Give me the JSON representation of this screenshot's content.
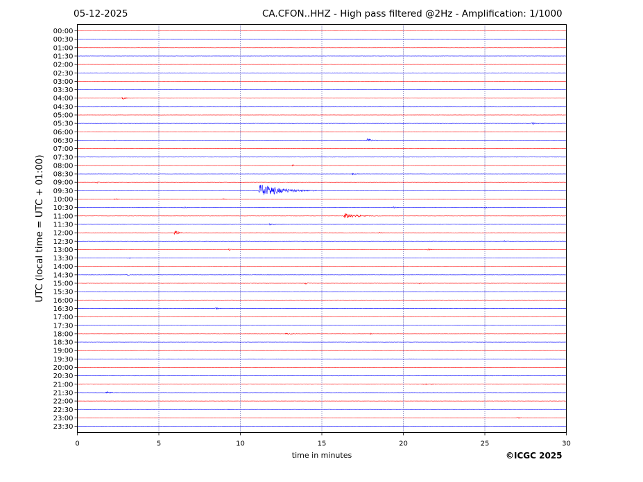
{
  "header": {
    "date": "05-12-2025",
    "title": "CA.CFON..HHZ - High pass filtered @2Hz - Amplification: 1/1000"
  },
  "copyright": "©ICGC 2025",
  "colors": {
    "red_trace": "#ff0000",
    "blue_trace": "#0000ff",
    "grid": "#000080"
  },
  "chart_data": {
    "type": "line",
    "xlabel": "time in minutes",
    "ylabel": "UTC (local time = UTC + 01:00)",
    "xlim": [
      0,
      30
    ],
    "x_ticks": [
      "0",
      "5",
      "10",
      "15",
      "20",
      "25",
      "30"
    ],
    "grid": "vertical dotted lines at each x tick",
    "row_labels": [
      "00:00",
      "00:30",
      "01:00",
      "01:30",
      "02:00",
      "02:30",
      "03:00",
      "03:30",
      "04:00",
      "04:30",
      "05:00",
      "05:30",
      "06:00",
      "06:30",
      "07:00",
      "07:30",
      "08:00",
      "08:30",
      "09:00",
      "09:30",
      "10:00",
      "10:30",
      "11:00",
      "11:30",
      "12:00",
      "12:30",
      "13:00",
      "13:30",
      "14:00",
      "14:30",
      "15:00",
      "15:30",
      "16:00",
      "16:30",
      "17:00",
      "17:30",
      "18:00",
      "18:30",
      "19:00",
      "19:30",
      "20:00",
      "20:30",
      "21:00",
      "21:30",
      "22:00",
      "22:30",
      "23:00",
      "23:30"
    ],
    "row_colors": [
      "red",
      "blue",
      "red",
      "blue",
      "red",
      "blue",
      "red",
      "blue",
      "red",
      "blue",
      "red",
      "blue",
      "red",
      "blue",
      "red",
      "blue",
      "red",
      "blue",
      "red",
      "blue",
      "red",
      "blue",
      "red",
      "blue",
      "red",
      "blue",
      "red",
      "blue",
      "red",
      "blue",
      "red",
      "blue",
      "red",
      "blue",
      "red",
      "blue",
      "red",
      "blue",
      "red",
      "blue",
      "red",
      "blue",
      "red",
      "blue",
      "red",
      "blue",
      "red",
      "blue"
    ],
    "events": [
      {
        "row": "04:00",
        "minute": 2.8,
        "amplitude": 0.25,
        "duration": 0.5
      },
      {
        "row": "05:30",
        "minute": 27.9,
        "amplitude": 0.2,
        "duration": 0.5
      },
      {
        "row": "06:30",
        "minute": 17.8,
        "amplitude": 0.2,
        "duration": 1.0
      },
      {
        "row": "06:30",
        "minute": 2.3,
        "amplitude": 0.1,
        "duration": 0.3
      },
      {
        "row": "08:00",
        "minute": 13.2,
        "amplitude": 0.1,
        "duration": 0.6
      },
      {
        "row": "08:30",
        "minute": 16.9,
        "amplitude": 0.15,
        "duration": 0.5
      },
      {
        "row": "09:00",
        "minute": 1.2,
        "amplitude": 0.1,
        "duration": 0.4
      },
      {
        "row": "09:30",
        "minute": 11.2,
        "amplitude": 0.9,
        "duration": 3.5
      },
      {
        "row": "10:00",
        "minute": 2.3,
        "amplitude": 0.1,
        "duration": 0.5
      },
      {
        "row": "10:00",
        "minute": 8.9,
        "amplitude": 0.1,
        "duration": 0.5
      },
      {
        "row": "10:30",
        "minute": 6.5,
        "amplitude": 0.12,
        "duration": 0.6
      },
      {
        "row": "10:30",
        "minute": 19.4,
        "amplitude": 0.12,
        "duration": 0.5
      },
      {
        "row": "10:30",
        "minute": 25.0,
        "amplitude": 0.12,
        "duration": 0.3
      },
      {
        "row": "11:00",
        "minute": 16.4,
        "amplitude": 0.35,
        "duration": 2.2
      },
      {
        "row": "11:30",
        "minute": 11.8,
        "amplitude": 0.12,
        "duration": 0.6
      },
      {
        "row": "12:00",
        "minute": 6.0,
        "amplitude": 0.5,
        "duration": 0.5
      },
      {
        "row": "12:00",
        "minute": 18.5,
        "amplitude": 0.1,
        "duration": 0.4
      },
      {
        "row": "12:30",
        "minute": 26.2,
        "amplitude": 0.08,
        "duration": 0.4
      },
      {
        "row": "13:00",
        "minute": 9.3,
        "amplitude": 0.12,
        "duration": 0.4
      },
      {
        "row": "13:00",
        "minute": 21.5,
        "amplitude": 0.15,
        "duration": 0.4
      },
      {
        "row": "13:30",
        "minute": 3.1,
        "amplitude": 0.08,
        "duration": 0.5
      },
      {
        "row": "14:30",
        "minute": 3.0,
        "amplitude": 0.1,
        "duration": 0.6
      },
      {
        "row": "15:00",
        "minute": 14.0,
        "amplitude": 0.15,
        "duration": 0.5
      },
      {
        "row": "15:00",
        "minute": 21.0,
        "amplitude": 0.08,
        "duration": 0.4
      },
      {
        "row": "16:30",
        "minute": 8.5,
        "amplitude": 0.1,
        "duration": 0.7
      },
      {
        "row": "18:00",
        "minute": 12.8,
        "amplitude": 0.1,
        "duration": 1.5
      },
      {
        "row": "18:00",
        "minute": 18.0,
        "amplitude": 0.12,
        "duration": 0.2
      },
      {
        "row": "21:00",
        "minute": 21.2,
        "amplitude": 0.08,
        "duration": 2.0
      },
      {
        "row": "21:30",
        "minute": 1.8,
        "amplitude": 0.15,
        "duration": 0.8
      },
      {
        "row": "22:30",
        "minute": 9.3,
        "amplitude": 0.08,
        "duration": 0.2
      },
      {
        "row": "23:00",
        "minute": 27.0,
        "amplitude": 0.1,
        "duration": 0.6
      }
    ]
  }
}
